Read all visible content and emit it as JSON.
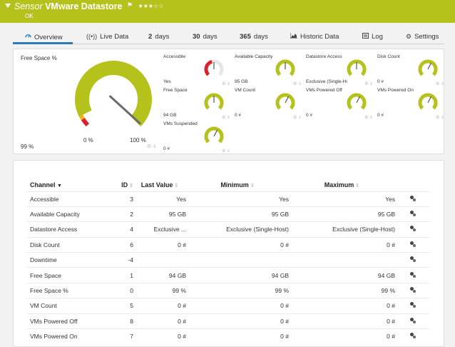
{
  "header": {
    "title_prefix": "Sensor",
    "title_name": "VMware Datastore",
    "flag": "⚑",
    "stars": "★★★☆☆",
    "status": "OK",
    "accent": "#b4c21b"
  },
  "tabs": [
    {
      "icon": "overview-icon",
      "label": "Overview"
    },
    {
      "icon": "live-data-icon",
      "label": "Live Data"
    },
    {
      "num": "2",
      "label": "days"
    },
    {
      "num": "30",
      "label": "days"
    },
    {
      "num": "365",
      "label": "days"
    },
    {
      "icon": "historic-data-icon",
      "label": "Historic Data"
    },
    {
      "icon": "log-icon",
      "label": "Log"
    },
    {
      "icon": "settings-icon",
      "label": "Settings"
    }
  ],
  "big_gauge": {
    "title": "Free Space %",
    "value": "99 %",
    "min_label": "0 %",
    "max_label": "100 %",
    "level": 0.99
  },
  "gauges": [
    {
      "name": "Accessible",
      "value": "Yes",
      "level": 0.5,
      "ring": "red"
    },
    {
      "name": "Available Capacity",
      "value": "95 GB",
      "level": 0.5,
      "ring": "yellow"
    },
    {
      "name": "Datastore Access",
      "value": "Exclusive (Single-Host)",
      "level": 0.5,
      "ring": "yellow"
    },
    {
      "name": "Disk Count",
      "value": "0 #",
      "level": 0.6,
      "ring": "yellow"
    },
    {
      "name": "Free Space",
      "value": "94 GB",
      "level": 0.5,
      "ring": "yellow"
    },
    {
      "name": "VM Count",
      "value": "0 #",
      "level": 0.6,
      "ring": "yellow"
    },
    {
      "name": "VMs Powered Off",
      "value": "0 #",
      "level": 0.6,
      "ring": "yellow"
    },
    {
      "name": "VMs Powered On",
      "value": "0 #",
      "level": 0.6,
      "ring": "yellow"
    },
    {
      "name": "VMs Suspended",
      "value": "0 #",
      "level": 0.6,
      "ring": "yellow"
    }
  ],
  "table": {
    "headers": [
      "Channel",
      "ID",
      "Last Value",
      "Minimum",
      "Maximum"
    ],
    "rows": [
      [
        "Accessible",
        "3",
        "Yes",
        "Yes",
        "Yes"
      ],
      [
        "Available Capacity",
        "2",
        "95 GB",
        "95 GB",
        "95 GB"
      ],
      [
        "Datastore Access",
        "4",
        "Exclusive ...",
        "Exclusive (Single-Host)",
        "Exclusive (Single-Host)"
      ],
      [
        "Disk Count",
        "6",
        "0 #",
        "0 #",
        "0 #"
      ],
      [
        "Downtime",
        "-4",
        "",
        "",
        ""
      ],
      [
        "Free Space",
        "1",
        "94 GB",
        "94 GB",
        "94 GB"
      ],
      [
        "Free Space %",
        "0",
        "99 %",
        "99 %",
        "99 %"
      ],
      [
        "VM Count",
        "5",
        "0 #",
        "0 #",
        "0 #"
      ],
      [
        "VMs Powered Off",
        "8",
        "0 #",
        "0 #",
        "0 #"
      ],
      [
        "VMs Powered On",
        "7",
        "0 #",
        "0 #",
        "0 #"
      ]
    ]
  },
  "colors": {
    "gauge_yellow": "#b4c21b",
    "gauge_red": "#d8232a",
    "tab_accent": "#2a7bb7"
  }
}
